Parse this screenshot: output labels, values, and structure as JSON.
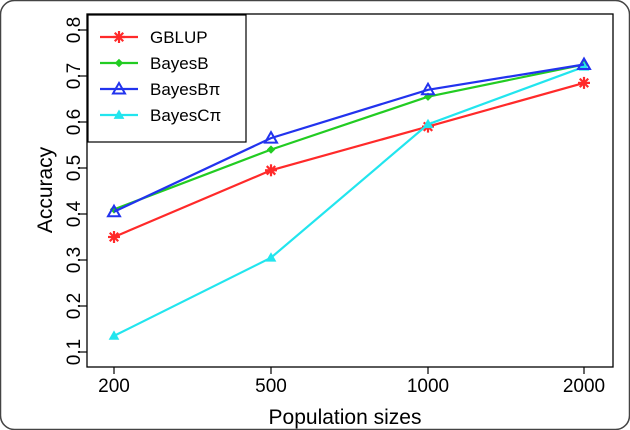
{
  "chart_data": {
    "type": "line",
    "xlabel": "Population sizes",
    "ylabel": "Accuracy",
    "categories": [
      "200",
      "500",
      "1000",
      "2000"
    ],
    "ylim": [
      0.08,
      0.82
    ],
    "yticks": [
      "0.1",
      "0.2",
      "0.3",
      "0.4",
      "0.5",
      "0.6",
      "0.7",
      "0.8"
    ],
    "legend_position": "top-left",
    "grid": false,
    "series": [
      {
        "name": "GBLUP",
        "values": [
          0.35,
          0.495,
          0.59,
          0.685
        ],
        "color": "#ff2a2a",
        "marker": "asterisk"
      },
      {
        "name": "BayesB",
        "values": [
          0.41,
          0.54,
          0.655,
          0.725
        ],
        "color": "#22cc22",
        "marker": "diamond"
      },
      {
        "name": "BayesBπ",
        "values": [
          0.405,
          0.565,
          0.67,
          0.725
        ],
        "color": "#2233ee",
        "marker": "triangle-open"
      },
      {
        "name": "BayesCπ",
        "values": [
          0.135,
          0.305,
          0.595,
          0.72
        ],
        "color": "#22e5ee",
        "marker": "triangle-filled"
      }
    ]
  }
}
